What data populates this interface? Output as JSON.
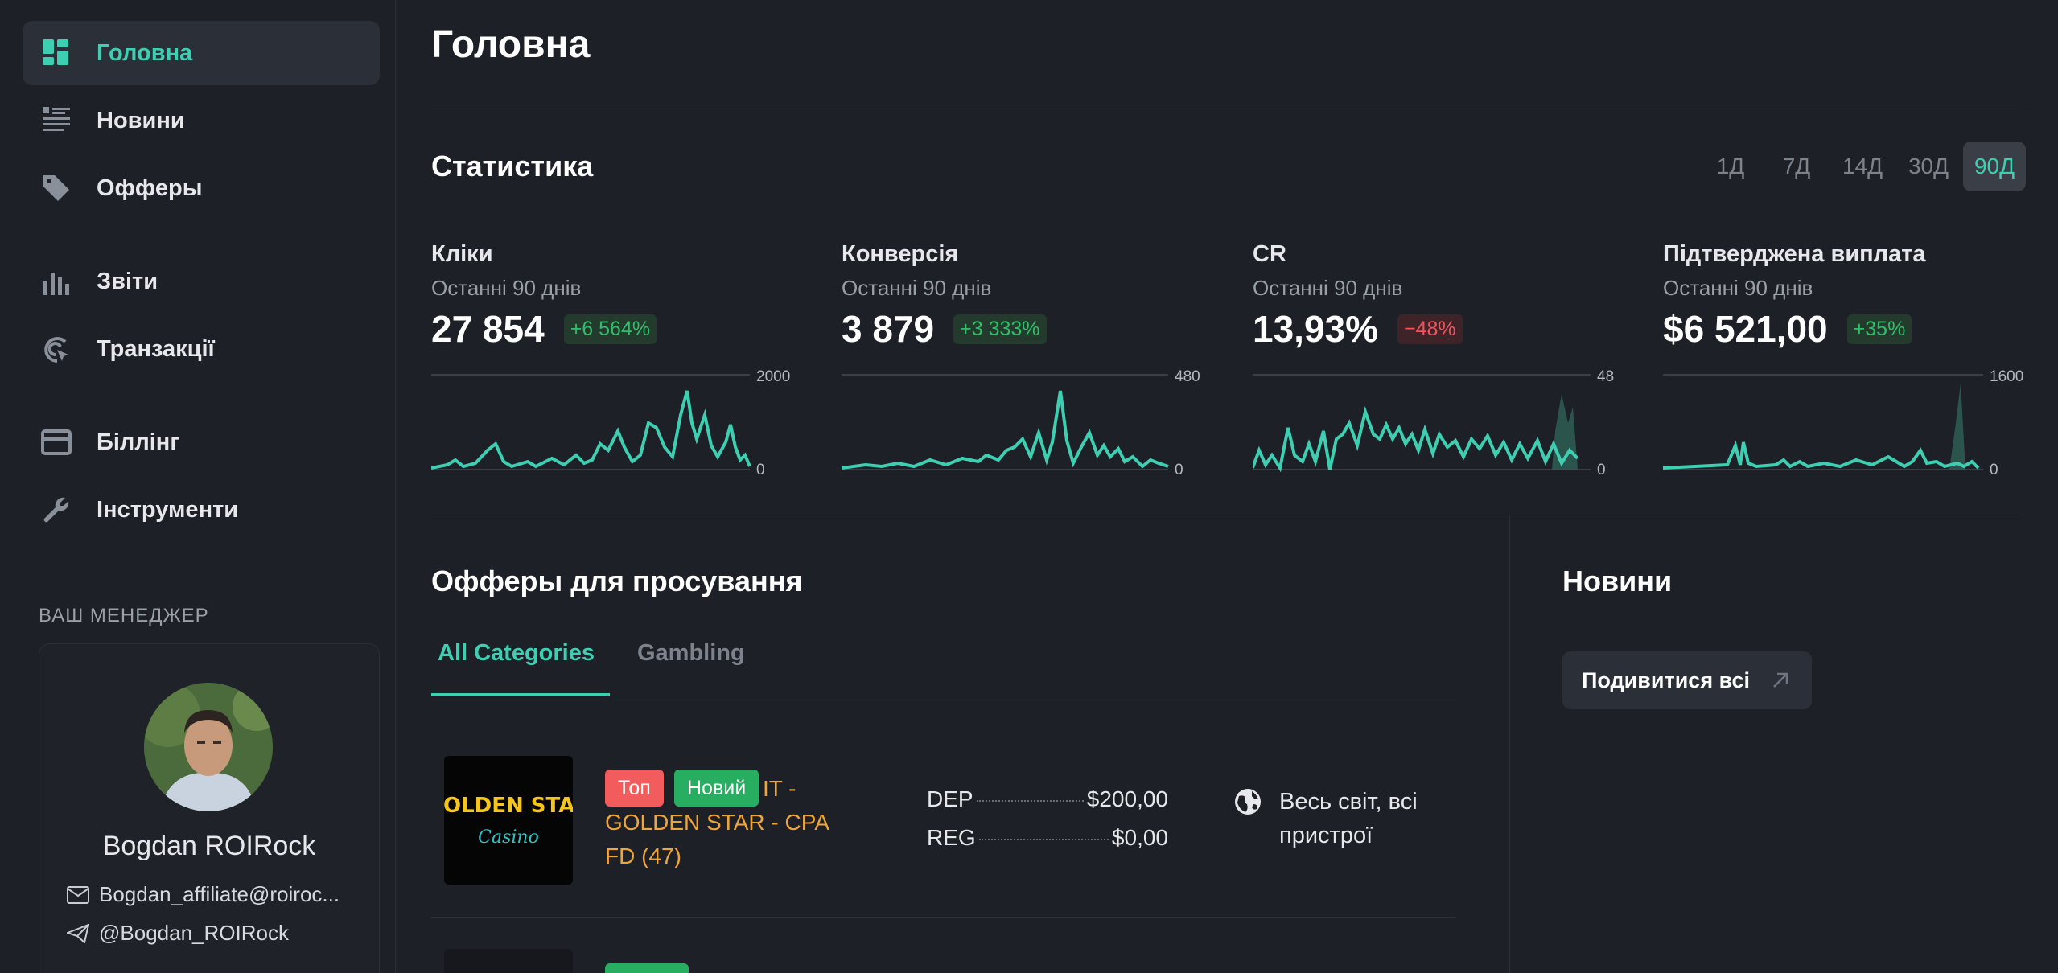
{
  "sidebar": {
    "items": [
      {
        "label": "Головна",
        "icon": "dashboard-icon",
        "active": true
      },
      {
        "label": "Новини",
        "icon": "news-list-icon"
      },
      {
        "label": "Офферы",
        "icon": "tag-icon"
      },
      {
        "label": "Звіти",
        "icon": "bar-chart-icon"
      },
      {
        "label": "Транзакції",
        "icon": "transactions-icon"
      },
      {
        "label": "Біллінг",
        "icon": "credit-card-icon"
      },
      {
        "label": "Інструменти",
        "icon": "wrench-icon"
      }
    ],
    "manager": {
      "title": "ВАШ МЕНЕДЖЕР",
      "name": "Bogdan ROIRock",
      "email": "Bogdan_affiliate@roiroc...",
      "telegram": "@Bogdan_ROIRock"
    }
  },
  "main": {
    "title": "Головна",
    "stats": {
      "title": "Статистика",
      "periods": [
        "1Д",
        "7Д",
        "14Д",
        "30Д",
        "90Д"
      ],
      "active_period": "90Д",
      "cards": [
        {
          "name": "Кліки",
          "sub": "Останні 90 днів",
          "value": "27 854",
          "delta": "+6 564%",
          "trend": "pos",
          "max_label": "2000",
          "min_label": "0"
        },
        {
          "name": "Конверсія",
          "sub": "Останні 90 днів",
          "value": "3 879",
          "delta": "+3 333%",
          "trend": "pos",
          "max_label": "480",
          "min_label": "0"
        },
        {
          "name": "CR",
          "sub": "Останні 90 днів",
          "value": "13,93%",
          "delta": "−48%",
          "trend": "neg",
          "max_label": "48",
          "min_label": "0"
        },
        {
          "name": "Підтверджена виплата",
          "sub": "Останні 90 днів",
          "value": "$6 521,00",
          "delta": "+35%",
          "trend": "pos",
          "max_label": "1600",
          "min_label": "0"
        }
      ]
    },
    "offers": {
      "title": "Офферы для просування",
      "tabs": [
        "All Categories",
        "Gambling"
      ],
      "items": [
        {
          "logo": "GOLDEN STAR",
          "logo_sub": "Casino",
          "tags": [
            {
              "label": "Топ",
              "color": "#f25c5c"
            },
            {
              "label": "Новий",
              "color": "#27ae60"
            }
          ],
          "name": "IT - GOLDEN STAR - CPA FD (47)",
          "metrics": [
            {
              "label": "DEP",
              "value": "$200,00"
            },
            {
              "label": "REG",
              "value": "$0,00"
            }
          ],
          "geo": "Весь світ, всі пристрої"
        }
      ]
    },
    "news": {
      "title": "Новини",
      "view_all": "Подивитися всі"
    }
  },
  "colors": {
    "accent": "#3ecfb2",
    "positive": "#2fbf6a",
    "negative": "#f0545d",
    "offer_name": "#f0a53a"
  }
}
